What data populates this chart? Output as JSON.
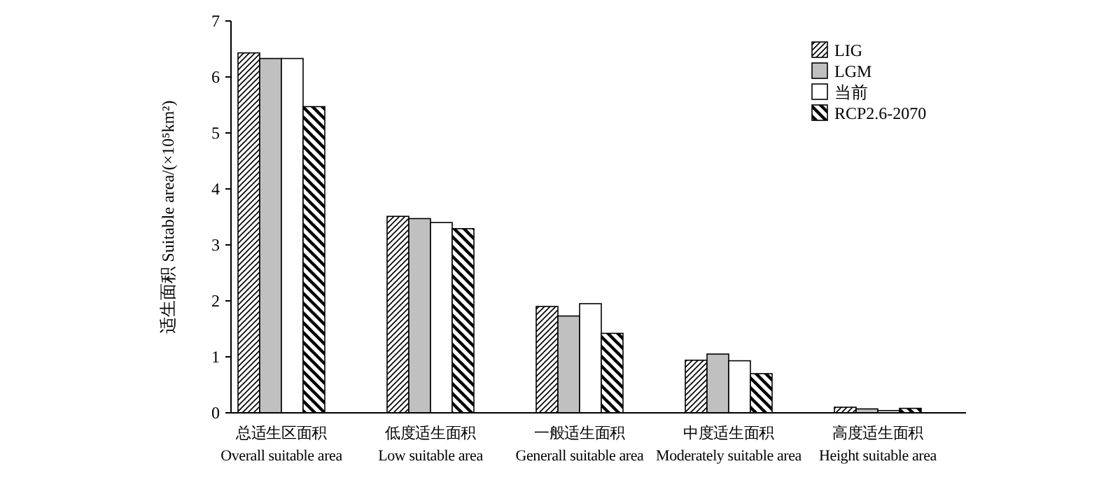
{
  "chart_data": {
    "type": "bar",
    "ylabel": "适生面积 Suitable area/(×10⁵km²)",
    "categories": [
      "总适生区面积\nOverall suitable area",
      "低度适生面积\nLow suitable area",
      "一般适生面积\nGenerall suitable area",
      "中度适生面积\nModerately suitable area",
      "高度适生面积\nHeight suitable area"
    ],
    "series": [
      {
        "name": "LIG",
        "color": "#000000",
        "values": [
          6.43,
          3.51,
          1.9,
          0.94,
          0.1
        ]
      },
      {
        "name": "LGM",
        "color": "#c0c0c0",
        "values": [
          6.33,
          3.47,
          1.73,
          1.05,
          0.07
        ]
      },
      {
        "name": "当前",
        "color": "#ffffff",
        "values": [
          6.33,
          3.4,
          1.95,
          0.93,
          0.04
        ]
      },
      {
        "name": "RCP2.6-2070",
        "color": "#000000",
        "values": [
          5.47,
          3.29,
          1.42,
          0.7,
          0.08
        ]
      }
    ],
    "ylim": [
      0,
      7
    ],
    "yticks": [
      0,
      1,
      2,
      3,
      4,
      5,
      6,
      7
    ],
    "grid": false,
    "legend": "top right"
  }
}
